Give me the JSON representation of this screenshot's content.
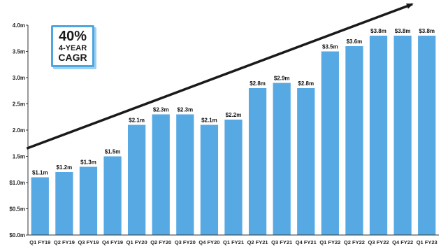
{
  "chart_data": {
    "type": "bar",
    "categories": [
      "Q1 FY19",
      "Q2 FY19",
      "Q3 FY19",
      "Q4 FY19",
      "Q1 FY20",
      "Q2 FY20",
      "Q3 FY20",
      "Q4 FY20",
      "Q1 FY21",
      "Q2 FY21",
      "Q3 FY21",
      "Q4 FY21",
      "Q1 FY22",
      "Q2 FY22",
      "Q3 FY22",
      "Q4 FY22",
      "Q1 FY23"
    ],
    "values": [
      1.1,
      1.2,
      1.3,
      1.5,
      2.1,
      2.3,
      2.3,
      2.1,
      2.2,
      2.8,
      2.9,
      2.8,
      3.5,
      3.6,
      3.8,
      3.8,
      3.8
    ],
    "data_labels": [
      "$1.1m",
      "$1.2m",
      "$1.3m",
      "$1.5m",
      "$2.1m",
      "$2.3m",
      "$2.3m",
      "$2.1m",
      "$2.2m",
      "$2.8m",
      "$2.9m",
      "$2.8m",
      "$3.5m",
      "$3.6m",
      "$3.8m",
      "$3.8m",
      "$3.8m"
    ],
    "y_ticks": [
      0,
      0.5,
      1.0,
      1.5,
      2.0,
      2.5,
      3.0,
      3.5,
      4.0
    ],
    "y_tick_labels": [
      "$0.0m",
      "$0.5m",
      "$1.0m",
      "1.5m",
      "2.0m",
      "2.5m",
      "3.0m",
      "3.5m",
      "4.0m"
    ],
    "ylim": [
      0,
      4.0
    ],
    "grid": false,
    "title": "",
    "xlabel": "",
    "ylabel": "",
    "bar_color": "#57a9e3",
    "trend_arrow": {
      "from": [
        0,
        1.65
      ],
      "to": [
        16.6,
        4.4
      ],
      "color": "#1a1a1a"
    }
  },
  "badge": {
    "percent": "40%",
    "line1": "4-YEAR",
    "line2": "CAGR",
    "border_color": "#4da6e0"
  }
}
